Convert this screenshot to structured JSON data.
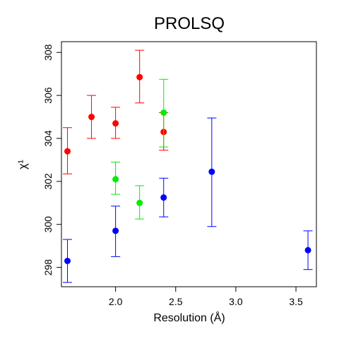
{
  "chart_data": {
    "type": "scatter",
    "title": "PROLSQ",
    "xlabel": "Resolution (Å)",
    "ylabel": "χ¹",
    "xlim": [
      1.55,
      3.67
    ],
    "ylim": [
      297.1,
      308.5
    ],
    "xticks": [
      2.0,
      2.5,
      3.0,
      3.5
    ],
    "xtick_labels": [
      "2.0",
      "2.5",
      "3.0",
      "3.5"
    ],
    "yticks": [
      298,
      300,
      302,
      304,
      306,
      308
    ],
    "ytick_labels": [
      "298",
      "300",
      "302",
      "304",
      "306",
      "308"
    ],
    "grid": false,
    "legend": null,
    "series": [
      {
        "color": "#ff0000",
        "points": [
          {
            "x": 1.6,
            "y": 303.4,
            "lo": 302.35,
            "hi": 304.5
          },
          {
            "x": 1.8,
            "y": 305.0,
            "lo": 304.0,
            "hi": 306.0
          },
          {
            "x": 2.0,
            "y": 304.7,
            "lo": 304.0,
            "hi": 305.45
          },
          {
            "x": 2.2,
            "y": 306.85,
            "lo": 305.65,
            "hi": 308.1
          },
          {
            "x": 2.4,
            "y": 304.3,
            "lo": 303.45,
            "hi": 305.2
          }
        ]
      },
      {
        "color": "#00ee00",
        "points": [
          {
            "x": 2.0,
            "y": 302.1,
            "lo": 301.4,
            "hi": 302.9
          },
          {
            "x": 2.2,
            "y": 301.0,
            "lo": 300.25,
            "hi": 301.8
          },
          {
            "x": 2.4,
            "y": 305.2,
            "lo": 303.6,
            "hi": 306.75
          }
        ]
      },
      {
        "color": "#0000ff",
        "points": [
          {
            "x": 1.6,
            "y": 298.3,
            "lo": 297.3,
            "hi": 299.3
          },
          {
            "x": 2.0,
            "y": 299.7,
            "lo": 298.5,
            "hi": 300.85
          },
          {
            "x": 2.4,
            "y": 301.25,
            "lo": 300.35,
            "hi": 302.15
          },
          {
            "x": 2.8,
            "y": 302.45,
            "lo": 299.9,
            "hi": 304.95
          },
          {
            "x": 3.6,
            "y": 298.8,
            "lo": 297.9,
            "hi": 299.7
          }
        ]
      }
    ]
  }
}
